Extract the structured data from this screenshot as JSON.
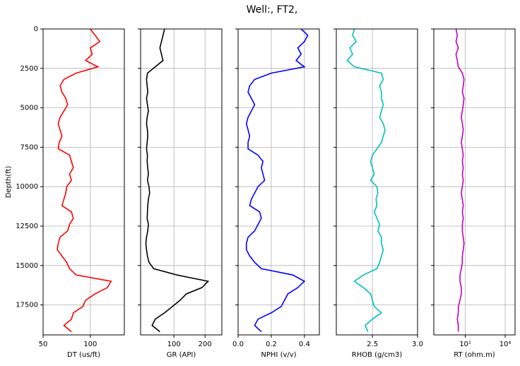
{
  "title": "Well:, FT2,",
  "chart_data": [
    {
      "type": "line",
      "xlabel": "DT (us/ft)",
      "ylabel": "Depth(ft)",
      "grid": true,
      "xlim": [
        50,
        136
      ],
      "xticks": [
        50,
        100
      ],
      "ylim": [
        19400,
        0
      ],
      "yticks": [
        0,
        2500,
        5000,
        7500,
        10000,
        12500,
        15000,
        17500
      ],
      "y": [
        0,
        400,
        800,
        1200,
        1600,
        2000,
        2400,
        2800,
        3200,
        3600,
        4000,
        4400,
        4800,
        5200,
        5600,
        6000,
        6400,
        6800,
        7200,
        7600,
        8000,
        8400,
        8800,
        9200,
        9600,
        10000,
        10400,
        10800,
        11200,
        11600,
        12000,
        12400,
        12800,
        13200,
        13600,
        14000,
        14400,
        14800,
        15200,
        15600,
        16000,
        16400,
        16800,
        17200,
        17600,
        18000,
        18400,
        18800,
        19200
      ],
      "series": [
        {
          "color": "#ff0000",
          "values": [
            100,
            105,
            110,
            100,
            102,
            95,
            108,
            85,
            72,
            68,
            70,
            74,
            76,
            72,
            68,
            66,
            68,
            70,
            67,
            66,
            78,
            80,
            82,
            78,
            80,
            75,
            74,
            72,
            70,
            80,
            82,
            78,
            76,
            68,
            66,
            65,
            70,
            75,
            78,
            85,
            122,
            118,
            105,
            95,
            92,
            82,
            80,
            72,
            80
          ]
        }
      ]
    },
    {
      "type": "line",
      "xlabel": "GR (API)",
      "grid": true,
      "sharey": true,
      "xlim": [
        -7,
        254
      ],
      "xticks": [
        100,
        200
      ],
      "series": [
        {
          "color": "#000000",
          "values": [
            70,
            65,
            60,
            55,
            60,
            65,
            40,
            15,
            12,
            14,
            16,
            12,
            15,
            18,
            14,
            12,
            15,
            16,
            14,
            12,
            15,
            14,
            16,
            18,
            15,
            20,
            22,
            18,
            16,
            15,
            14,
            18,
            16,
            12,
            10,
            12,
            15,
            20,
            35,
            110,
            210,
            190,
            140,
            120,
            95,
            70,
            40,
            30,
            55
          ]
        }
      ]
    },
    {
      "type": "line",
      "xlabel": "NPHI (v/v)",
      "grid": true,
      "sharey": true,
      "xlim": [
        0,
        0.49
      ],
      "xticks": [
        {
          "value": 0,
          "label": "0.0"
        },
        0.2,
        0.4
      ],
      "series": [
        {
          "color": "#0000ff",
          "values": [
            0.38,
            0.42,
            0.4,
            0.36,
            0.38,
            0.35,
            0.4,
            0.2,
            0.1,
            0.07,
            0.06,
            0.08,
            0.1,
            0.08,
            0.06,
            0.05,
            0.06,
            0.07,
            0.06,
            0.06,
            0.12,
            0.15,
            0.14,
            0.15,
            0.16,
            0.12,
            0.1,
            0.08,
            0.07,
            0.13,
            0.14,
            0.12,
            0.1,
            0.06,
            0.05,
            0.05,
            0.07,
            0.1,
            0.14,
            0.33,
            0.4,
            0.36,
            0.3,
            0.28,
            0.26,
            0.2,
            0.12,
            0.1,
            0.14
          ]
        }
      ]
    },
    {
      "type": "line",
      "xlabel": "RHOB (g/cm3)",
      "grid": true,
      "sharey": true,
      "xlim": [
        2.1,
        3.0
      ],
      "xticks": [
        2.5,
        {
          "value": 3,
          "label": "3.0"
        }
      ],
      "series": [
        {
          "color": "#00bfbf",
          "values": [
            2.3,
            2.28,
            2.32,
            2.25,
            2.28,
            2.22,
            2.3,
            2.6,
            2.62,
            2.58,
            2.6,
            2.6,
            2.62,
            2.6,
            2.58,
            2.62,
            2.64,
            2.62,
            2.6,
            2.55,
            2.5,
            2.48,
            2.5,
            2.52,
            2.48,
            2.55,
            2.56,
            2.54,
            2.55,
            2.52,
            2.55,
            2.58,
            2.56,
            2.6,
            2.6,
            2.62,
            2.6,
            2.58,
            2.55,
            2.4,
            2.3,
            2.4,
            2.48,
            2.5,
            2.52,
            2.6,
            2.5,
            2.42,
            2.45
          ]
        }
      ]
    },
    {
      "type": "line",
      "xlabel": "RT (ohm.m)",
      "grid": true,
      "sharey": true,
      "xscale": "log",
      "xlim": [
        0.043,
        55000
      ],
      "xticks": [
        {
          "value": 10,
          "label": "10¹"
        },
        {
          "value": 10000,
          "label": "10⁴"
        }
      ],
      "series": [
        {
          "color": "#bf00bf",
          "values": [
            2,
            2.5,
            2,
            3,
            2,
            2.5,
            3,
            6,
            8,
            7,
            6,
            8,
            7,
            6,
            5,
            6,
            7,
            6,
            5,
            6,
            7,
            6,
            7,
            6,
            7,
            6,
            5,
            6,
            7,
            6,
            7,
            6,
            6,
            7,
            8,
            7,
            6,
            6,
            5,
            4,
            4,
            5,
            5,
            4,
            3,
            3,
            2.5,
            3,
            3
          ]
        }
      ]
    }
  ]
}
